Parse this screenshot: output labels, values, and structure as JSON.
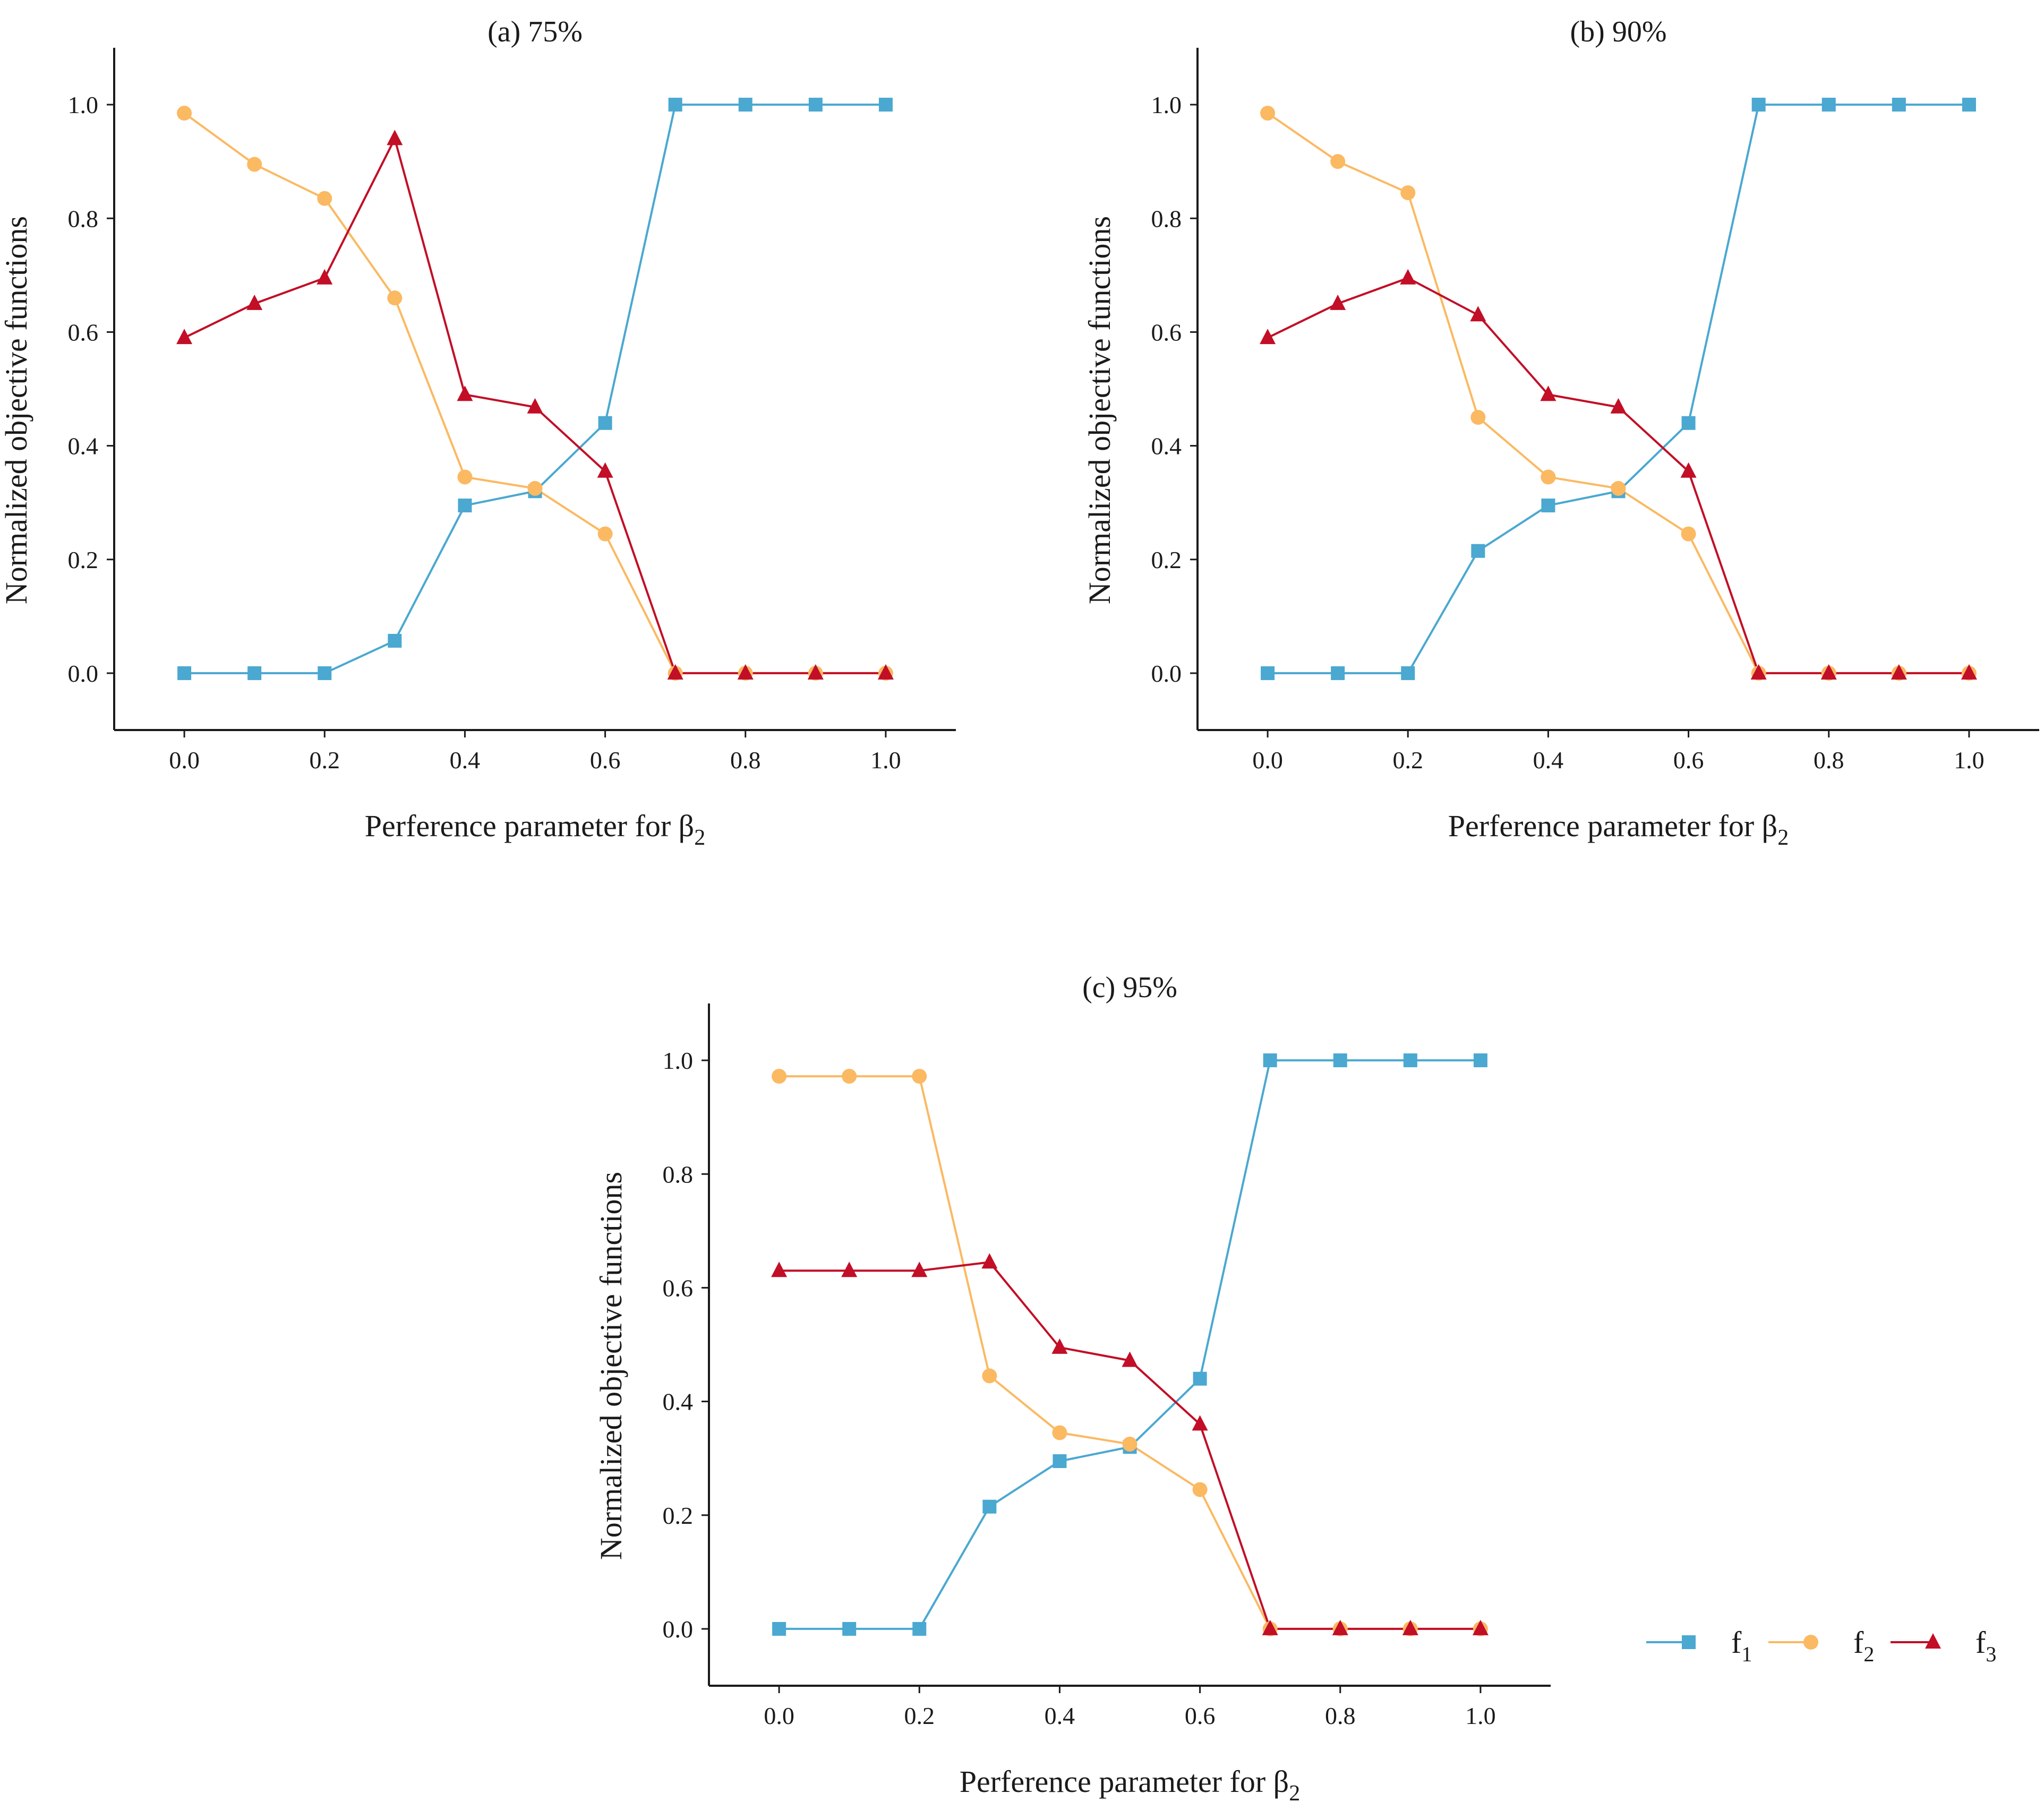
{
  "colors": {
    "f1": "#4aa8d1",
    "f2": "#fbb962",
    "f3": "#c20e26",
    "axis": "#1a1a1a"
  },
  "legend": [
    {
      "key": "f1",
      "base": "f",
      "sub": "1",
      "marker": "square"
    },
    {
      "key": "f2",
      "base": "f",
      "sub": "2",
      "marker": "circle"
    },
    {
      "key": "f3",
      "base": "f",
      "sub": "3",
      "marker": "triangle"
    }
  ],
  "chart_data": [
    {
      "type": "line",
      "title": "(a) 75%",
      "xlabel_text": "Perference parameter for β",
      "xlabel_sub": "2",
      "ylabel": "Normalized objective functions",
      "xlim": [
        -0.1,
        1.1
      ],
      "ylim": [
        -0.1,
        1.1
      ],
      "xticks": [
        "0.0",
        "0.2",
        "0.4",
        "0.6",
        "0.8",
        "1.0"
      ],
      "yticks": [
        "0.0",
        "0.2",
        "0.4",
        "0.6",
        "0.8",
        "1.0"
      ],
      "x": [
        0.0,
        0.1,
        0.2,
        0.3,
        0.4,
        0.5,
        0.6,
        0.7,
        0.8,
        0.9,
        1.0
      ],
      "series": [
        {
          "name": "f1",
          "marker": "square",
          "values": [
            0.0,
            0.0,
            0.0,
            0.057,
            0.295,
            0.32,
            0.44,
            1.0,
            1.0,
            1.0,
            1.0
          ]
        },
        {
          "name": "f2",
          "marker": "circle",
          "values": [
            0.985,
            0.895,
            0.835,
            0.66,
            0.345,
            0.325,
            0.245,
            0.0,
            0.0,
            0.0,
            0.0
          ]
        },
        {
          "name": "f3",
          "marker": "triangle",
          "values": [
            0.59,
            0.65,
            0.695,
            0.94,
            0.49,
            0.468,
            0.355,
            0.0,
            0.0,
            0.0,
            0.0
          ]
        }
      ]
    },
    {
      "type": "line",
      "title": "(b) 90%",
      "xlabel_text": "Perference parameter for β",
      "xlabel_sub": "2",
      "ylabel": "Normalized objective functions",
      "xlim": [
        -0.1,
        1.1
      ],
      "ylim": [
        -0.1,
        1.1
      ],
      "xticks": [
        "0.0",
        "0.2",
        "0.4",
        "0.6",
        "0.8",
        "1.0"
      ],
      "yticks": [
        "0.0",
        "0.2",
        "0.4",
        "0.6",
        "0.8",
        "1.0"
      ],
      "x": [
        0.0,
        0.1,
        0.2,
        0.3,
        0.4,
        0.5,
        0.6,
        0.7,
        0.8,
        0.9,
        1.0
      ],
      "series": [
        {
          "name": "f1",
          "marker": "square",
          "values": [
            0.0,
            0.0,
            0.0,
            0.215,
            0.295,
            0.32,
            0.44,
            1.0,
            1.0,
            1.0,
            1.0
          ]
        },
        {
          "name": "f2",
          "marker": "circle",
          "values": [
            0.985,
            0.9,
            0.845,
            0.45,
            0.345,
            0.325,
            0.245,
            0.0,
            0.0,
            0.0,
            0.0
          ]
        },
        {
          "name": "f3",
          "marker": "triangle",
          "values": [
            0.59,
            0.65,
            0.695,
            0.63,
            0.49,
            0.468,
            0.355,
            0.0,
            0.0,
            0.0,
            0.0
          ]
        }
      ]
    },
    {
      "type": "line",
      "title": "(c) 95%",
      "xlabel_text": "Perference parameter for β",
      "xlabel_sub": "2",
      "ylabel": "Normalized objective functions",
      "xlim": [
        -0.1,
        1.1
      ],
      "ylim": [
        -0.1,
        1.1
      ],
      "xticks": [
        "0.0",
        "0.2",
        "0.4",
        "0.6",
        "0.8",
        "1.0"
      ],
      "yticks": [
        "0.0",
        "0.2",
        "0.4",
        "0.6",
        "0.8",
        "1.0"
      ],
      "x": [
        0.0,
        0.1,
        0.2,
        0.3,
        0.4,
        0.5,
        0.6,
        0.7,
        0.8,
        0.9,
        1.0
      ],
      "series": [
        {
          "name": "f1",
          "marker": "square",
          "values": [
            0.0,
            0.0,
            0.0,
            0.215,
            0.295,
            0.32,
            0.44,
            1.0,
            1.0,
            1.0,
            1.0
          ]
        },
        {
          "name": "f2",
          "marker": "circle",
          "values": [
            0.972,
            0.972,
            0.972,
            0.445,
            0.345,
            0.325,
            0.245,
            0.0,
            0.0,
            0.0,
            0.0
          ]
        },
        {
          "name": "f3",
          "marker": "triangle",
          "values": [
            0.63,
            0.63,
            0.63,
            0.645,
            0.495,
            0.472,
            0.36,
            0.0,
            0.0,
            0.0,
            0.0
          ]
        }
      ]
    }
  ]
}
